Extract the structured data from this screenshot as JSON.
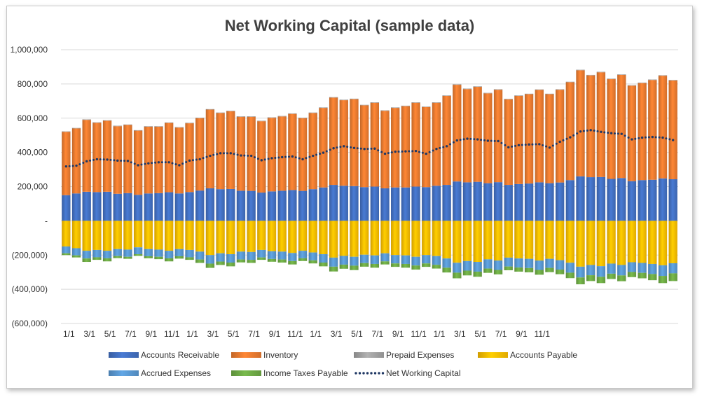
{
  "chart_data": {
    "type": "bar",
    "title": "Net Working Capital (sample data)",
    "xlabel": "",
    "ylabel": "",
    "ylim": [
      -600000,
      1000000
    ],
    "y_ticks": [
      1000000,
      800000,
      600000,
      400000,
      200000,
      0,
      -200000,
      -400000,
      -600000
    ],
    "y_tick_labels": [
      "1,000,000",
      "800,000",
      "600,000",
      "400,000",
      "200,000",
      "-",
      "(200,000)",
      "(400,000)",
      "(600,000)"
    ],
    "x_tick_labels": [
      "1/1",
      "3/1",
      "5/1",
      "7/1",
      "9/1",
      "11/1",
      "1/1",
      "3/1",
      "5/1",
      "7/1",
      "9/1",
      "11/1",
      "1/1",
      "3/1",
      "5/1",
      "7/1",
      "9/1",
      "11/1",
      "1/1",
      "3/1",
      "5/1",
      "7/1",
      "9/1",
      "11/1"
    ],
    "legend_position": "bottom",
    "grid": true,
    "stacked": true,
    "series": [
      {
        "name": "Accounts Receivable",
        "color": "#4472C4",
        "values": [
          150000,
          160000,
          170000,
          168000,
          170000,
          158000,
          162000,
          152000,
          160000,
          162000,
          167000,
          160000,
          168000,
          177000,
          190000,
          185000,
          186000,
          176000,
          175000,
          165000,
          172000,
          176000,
          180000,
          175000,
          185000,
          195000,
          210000,
          205000,
          203000,
          197000,
          200000,
          190000,
          195000,
          195000,
          200000,
          197000,
          205000,
          210000,
          230000,
          225000,
          228000,
          220000,
          226000,
          210000,
          215000,
          218000,
          225000,
          220000,
          224000,
          238000,
          260000,
          255000,
          256000,
          245000,
          250000,
          232000,
          238000,
          240000,
          248000,
          243000
        ]
      },
      {
        "name": "Inventory",
        "color": "#ED7D31",
        "values": [
          370000,
          380000,
          420000,
          405000,
          415000,
          395000,
          398000,
          375000,
          390000,
          388000,
          405000,
          385000,
          402000,
          423000,
          460000,
          445000,
          454000,
          432000,
          433000,
          417000,
          430000,
          434000,
          445000,
          425000,
          445000,
          465000,
          510000,
          500000,
          508000,
          478000,
          490000,
          453000,
          465000,
          475000,
          490000,
          468000,
          485000,
          520000,
          565000,
          545000,
          555000,
          525000,
          540000,
          500000,
          515000,
          522000,
          540000,
          520000,
          542000,
          572000,
          620000,
          595000,
          612000,
          583000,
          603000,
          558000,
          567000,
          583000,
          600000,
          577000
        ]
      },
      {
        "name": "Prepaid Expenses",
        "color": "#A5A5A5",
        "values": [
          3000,
          3000,
          3000,
          3000,
          3000,
          3000,
          3000,
          3000,
          3000,
          3000,
          3000,
          3000,
          3000,
          3000,
          3000,
          3000,
          3000,
          3000,
          3000,
          3000,
          3000,
          3000,
          3000,
          3000,
          3000,
          3000,
          3000,
          3000,
          3000,
          3000,
          3000,
          3000,
          3000,
          3000,
          3000,
          3000,
          3000,
          3000,
          3000,
          3000,
          3000,
          3000,
          3000,
          3000,
          3000,
          3000,
          3000,
          3000,
          3000,
          3000,
          3000,
          3000,
          3000,
          3000,
          3000,
          3000,
          3000,
          3000,
          3000,
          3000
        ]
      },
      {
        "name": "Accounts Payable",
        "color": "#FFC000",
        "values": [
          -150000,
          -160000,
          -175000,
          -170000,
          -175000,
          -165000,
          -168000,
          -155000,
          -165000,
          -168000,
          -175000,
          -165000,
          -170000,
          -180000,
          -200000,
          -190000,
          -195000,
          -180000,
          -182000,
          -170000,
          -178000,
          -180000,
          -188000,
          -175000,
          -185000,
          -195000,
          -215000,
          -205000,
          -210000,
          -198000,
          -202000,
          -190000,
          -200000,
          -202000,
          -210000,
          -200000,
          -206000,
          -220000,
          -245000,
          -235000,
          -240000,
          -225000,
          -232000,
          -215000,
          -220000,
          -222000,
          -232000,
          -222000,
          -230000,
          -245000,
          -268000,
          -258000,
          -265000,
          -250000,
          -258000,
          -242000,
          -246000,
          -252000,
          -260000,
          -248000
        ]
      },
      {
        "name": "Accrued Expenses",
        "color": "#5B9BD5",
        "values": [
          -40000,
          -42000,
          -45000,
          -43000,
          -44000,
          -41000,
          -42000,
          -40000,
          -42000,
          -42000,
          -44000,
          -42000,
          -43000,
          -46000,
          -50000,
          -48000,
          -49000,
          -46000,
          -46000,
          -44000,
          -45000,
          -46000,
          -47000,
          -44000,
          -46000,
          -49000,
          -53000,
          -51000,
          -52000,
          -49000,
          -50000,
          -47000,
          -49000,
          -50000,
          -51000,
          -49000,
          -51000,
          -54000,
          -58000,
          -56000,
          -57000,
          -54000,
          -55000,
          -52000,
          -53000,
          -54000,
          -55000,
          -53000,
          -55000,
          -58000,
          -63000,
          -60000,
          -62000,
          -59000,
          -61000,
          -57000,
          -58000,
          -59000,
          -62000,
          -59000
        ]
      },
      {
        "name": "Income Taxes Payable",
        "color": "#70AD47",
        "values": [
          -10000,
          -12000,
          -20000,
          -15000,
          -18000,
          -12000,
          -12000,
          -10000,
          -12000,
          -14000,
          -18000,
          -14000,
          -15000,
          -20000,
          -25000,
          -20000,
          -22000,
          -17000,
          -18000,
          -14000,
          -16000,
          -18000,
          -20000,
          -16000,
          -18000,
          -22000,
          -28000,
          -24000,
          -26000,
          -21000,
          -22000,
          -18000,
          -20000,
          -22000,
          -24000,
          -20000,
          -22000,
          -28000,
          -33000,
          -28000,
          -30000,
          -25000,
          -26000,
          -22000,
          -24000,
          -25000,
          -28000,
          -25000,
          -27000,
          -32000,
          -40000,
          -34000,
          -37000,
          -31000,
          -34000,
          -30000,
          -32000,
          -36000,
          -42000,
          -45000
        ]
      },
      {
        "name": "Net Working Capital",
        "color": "#203864",
        "type": "line",
        "values": [
          318000,
          322000,
          348000,
          360000,
          358000,
          352000,
          350000,
          325000,
          336000,
          342000,
          342000,
          325000,
          352000,
          360000,
          380000,
          395000,
          395000,
          382000,
          380000,
          354000,
          366000,
          372000,
          376000,
          360000,
          380000,
          398000,
          424000,
          436000,
          426000,
          420000,
          422000,
          392000,
          404000,
          406000,
          408000,
          392000,
          420000,
          436000,
          470000,
          480000,
          476000,
          468000,
          466000,
          430000,
          442000,
          446000,
          448000,
          428000,
          462000,
          488000,
          522000,
          530000,
          520000,
          512000,
          508000,
          476000,
          486000,
          490000,
          486000,
          472000
        ]
      }
    ]
  }
}
